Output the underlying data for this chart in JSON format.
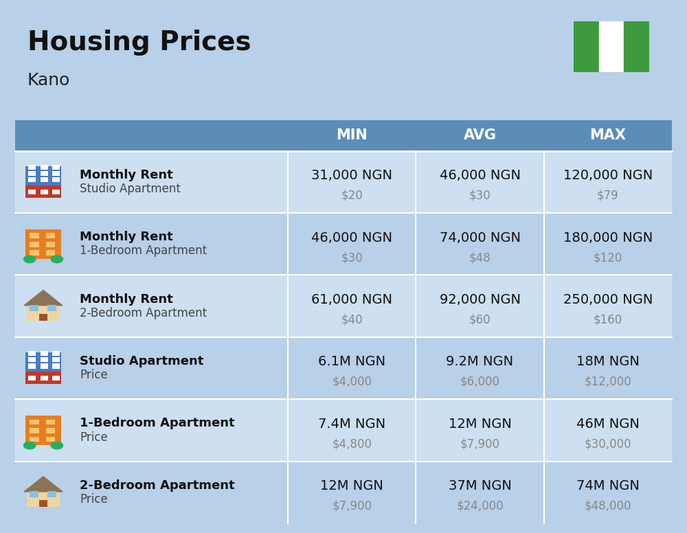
{
  "title": "Housing Prices",
  "subtitle": "Kano",
  "background_color": "#b8d0e8",
  "header_bg_color": "#5b8db8",
  "header_text_color": "#ffffff",
  "row_bg_color_light": "#cddff0",
  "row_bg_color_dark": "#b8d0e8",
  "divider_color": "#ffffff",
  "col_headers": [
    "MIN",
    "AVG",
    "MAX"
  ],
  "rows": [
    {
      "label_bold": "Monthly Rent",
      "label_sub": "Studio Apartment",
      "emoji": "studio_blue",
      "min_ngn": "31,000 NGN",
      "min_usd": "$20",
      "avg_ngn": "46,000 NGN",
      "avg_usd": "$30",
      "max_ngn": "120,000 NGN",
      "max_usd": "$79"
    },
    {
      "label_bold": "Monthly Rent",
      "label_sub": "1-Bedroom Apartment",
      "emoji": "one_bed_orange",
      "min_ngn": "46,000 NGN",
      "min_usd": "$30",
      "avg_ngn": "74,000 NGN",
      "avg_usd": "$48",
      "max_ngn": "180,000 NGN",
      "max_usd": "$120"
    },
    {
      "label_bold": "Monthly Rent",
      "label_sub": "2-Bedroom Apartment",
      "emoji": "two_bed_tan",
      "min_ngn": "61,000 NGN",
      "min_usd": "$40",
      "avg_ngn": "92,000 NGN",
      "avg_usd": "$60",
      "max_ngn": "250,000 NGN",
      "max_usd": "$160"
    },
    {
      "label_bold": "Studio Apartment",
      "label_sub": "Price",
      "emoji": "studio_blue",
      "min_ngn": "6.1M NGN",
      "min_usd": "$4,000",
      "avg_ngn": "9.2M NGN",
      "avg_usd": "$6,000",
      "max_ngn": "18M NGN",
      "max_usd": "$12,000"
    },
    {
      "label_bold": "1-Bedroom Apartment",
      "label_sub": "Price",
      "emoji": "one_bed_orange",
      "min_ngn": "7.4M NGN",
      "min_usd": "$4,800",
      "avg_ngn": "12M NGN",
      "avg_usd": "$7,900",
      "max_ngn": "46M NGN",
      "max_usd": "$30,000"
    },
    {
      "label_bold": "2-Bedroom Apartment",
      "label_sub": "Price",
      "emoji": "two_bed_tan",
      "min_ngn": "12M NGN",
      "min_usd": "$7,900",
      "avg_ngn": "37M NGN",
      "avg_usd": "$24,000",
      "max_ngn": "74M NGN",
      "max_usd": "$48,000"
    }
  ],
  "nigeria_flag_green": "#3d9b3d",
  "nigeria_flag_white": "#ffffff",
  "title_fontsize": 28,
  "subtitle_fontsize": 18,
  "header_fontsize": 15,
  "cell_ngn_fontsize": 14,
  "cell_usd_fontsize": 12,
  "label_bold_fontsize": 13,
  "label_sub_fontsize": 12
}
